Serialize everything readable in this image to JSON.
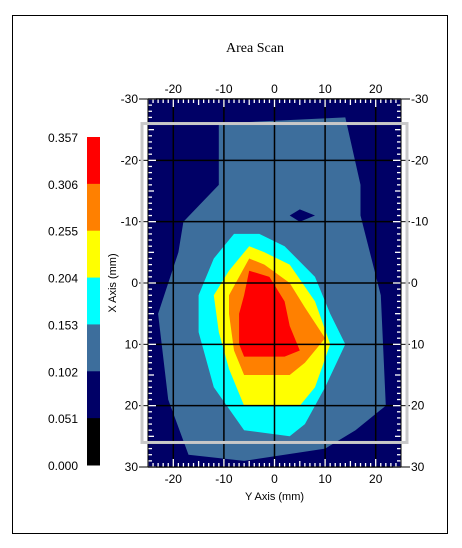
{
  "chart_data": {
    "type": "heatmap",
    "title": "Area Scan",
    "xlabel": "Y Axis (mm)",
    "ylabel": "X Axis (mm)",
    "x_ticks": [
      "-20",
      "-10",
      "0",
      "10",
      "20"
    ],
    "x_tick_values": [
      -20,
      -10,
      0,
      10,
      20
    ],
    "y_ticks": [
      "-30",
      "-20",
      "-10",
      "0",
      "10",
      "20",
      "30"
    ],
    "y_tick_values": [
      -30,
      -20,
      -10,
      0,
      10,
      20,
      30
    ],
    "xlim": [
      -25,
      25
    ],
    "ylim": [
      -30,
      30
    ],
    "y_inverted": true,
    "grid": true,
    "legend_position": "left",
    "colorbar": {
      "labels": [
        "0.357",
        "0.306",
        "0.255",
        "0.204",
        "0.153",
        "0.102",
        "0.051",
        "0.000"
      ],
      "bounds": [
        0.0,
        0.051,
        0.102,
        0.153,
        0.204,
        0.255,
        0.306,
        0.357
      ],
      "colors": [
        "#000000",
        "#000066",
        "#3d6e9c",
        "#00ffff",
        "#ffff00",
        "#ff8000",
        "#ff0000"
      ]
    },
    "regions": [
      {
        "level": "0.051-0.102",
        "color": "#000066",
        "points": [
          [
            -25,
            -30
          ],
          [
            25,
            -30
          ],
          [
            25,
            30
          ],
          [
            -25,
            30
          ]
        ]
      },
      {
        "level": "0.102-0.153",
        "color": "#3d6e9c",
        "points": [
          [
            -11,
            -26
          ],
          [
            14,
            -27
          ],
          [
            17,
            -16
          ],
          [
            17,
            -11
          ],
          [
            21,
            2
          ],
          [
            22,
            20
          ],
          [
            16,
            24
          ],
          [
            10,
            27
          ],
          [
            -6,
            29
          ],
          [
            -17,
            28
          ],
          [
            -21,
            19
          ],
          [
            -23,
            5
          ],
          [
            -19,
            -5
          ],
          [
            -18,
            -10
          ],
          [
            -11,
            -16
          ]
        ]
      },
      {
        "level": "0.051-0.102",
        "color": "#000066",
        "points": [
          [
            3,
            -11
          ],
          [
            5,
            -12
          ],
          [
            8,
            -11
          ],
          [
            5,
            -10
          ]
        ]
      },
      {
        "level": "0.153-0.204",
        "color": "#00ffff",
        "points": [
          [
            -8,
            -8
          ],
          [
            -3,
            -8
          ],
          [
            2,
            -6
          ],
          [
            8,
            -1
          ],
          [
            11,
            5
          ],
          [
            14,
            10
          ],
          [
            10,
            17
          ],
          [
            6,
            23
          ],
          [
            3,
            25
          ],
          [
            -6,
            24
          ],
          [
            -12,
            17
          ],
          [
            -15,
            8
          ],
          [
            -15,
            2
          ],
          [
            -12,
            -4
          ]
        ]
      },
      {
        "level": "0.204-0.255",
        "color": "#ffff00",
        "points": [
          [
            -5,
            -6
          ],
          [
            -2,
            -5
          ],
          [
            3,
            -3
          ],
          [
            8,
            3
          ],
          [
            11,
            10
          ],
          [
            8,
            17
          ],
          [
            5,
            20
          ],
          [
            -6,
            20
          ],
          [
            -9,
            14
          ],
          [
            -11,
            8
          ],
          [
            -12,
            2
          ],
          [
            -9,
            -2
          ]
        ]
      },
      {
        "level": "0.255-0.306",
        "color": "#ff8000",
        "points": [
          [
            -5,
            -4
          ],
          [
            -2,
            -3
          ],
          [
            3,
            0
          ],
          [
            6,
            4
          ],
          [
            10,
            9
          ],
          [
            6,
            13
          ],
          [
            3,
            15
          ],
          [
            -6,
            15
          ],
          [
            -8,
            11
          ],
          [
            -9,
            5
          ],
          [
            -9,
            2
          ]
        ]
      },
      {
        "level": "0.306-0.357",
        "color": "#ff0000",
        "points": [
          [
            -5,
            -2
          ],
          [
            -1,
            -1
          ],
          [
            2,
            3
          ],
          [
            3,
            7
          ],
          [
            5,
            11
          ],
          [
            2,
            12
          ],
          [
            -6,
            12
          ],
          [
            -7,
            10
          ],
          [
            -7,
            5
          ],
          [
            -6,
            2
          ]
        ]
      }
    ]
  }
}
